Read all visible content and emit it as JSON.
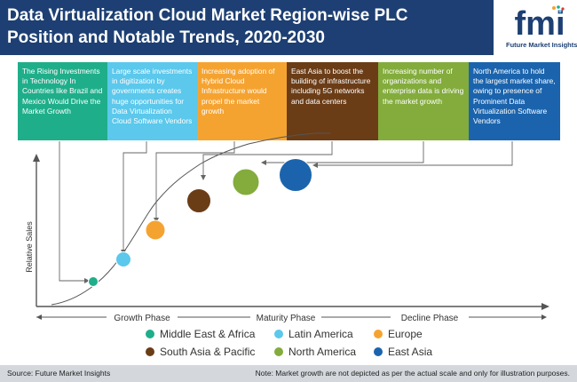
{
  "header": {
    "title_line1": "Data Virtualization Cloud Market Region-wise PLC",
    "title_line2": "Position and Notable Trends, 2020-2030",
    "logo_word": "fmi",
    "logo_caption": "Future Market Insights"
  },
  "trends": [
    {
      "text": "The Rising Investments in Technology In Countries like Brazil and Mexico Would Drive the Market Growth",
      "color": "#1fae8a"
    },
    {
      "text": "Large scale investments in digitization by governments creates huge opportunities for Data Virtualization Cloud Software Vendors",
      "color": "#5bc8ec"
    },
    {
      "text": "Increasing adoption of Hybrid Cloud Infrastructure would propel the market growth",
      "color": "#f5a330"
    },
    {
      "text": "East Asia to boost the building of infrastructure including 5G networks and data centers",
      "color": "#6b3d17"
    },
    {
      "text": "Increasing number of organizations and enterprise data is driving the market growth",
      "color": "#83ac3c"
    },
    {
      "text": "North America to hold the largest market share, owing to presence of Prominent Data Virtualization Software Vendors",
      "color": "#1b64ad"
    }
  ],
  "axes": {
    "y_label": "Relative Sales",
    "phases": [
      "Growth Phase",
      "Maturity Phase",
      "Decline Phase"
    ]
  },
  "legend": [
    {
      "label": "Middle East & Africa",
      "color": "#1fae8a"
    },
    {
      "label": "Latin America",
      "color": "#5bc8ec"
    },
    {
      "label": "Europe",
      "color": "#f5a330"
    },
    {
      "label": "South Asia & Pacific",
      "color": "#6b3d17"
    },
    {
      "label": "North America",
      "color": "#83ac3c"
    },
    {
      "label": "East Asia",
      "color": "#1b64ad"
    }
  ],
  "footer": {
    "source": "Source: Future Market Insights",
    "note": "Note: Market growth are not depicted as per the actual scale and only for illustration purposes."
  }
}
